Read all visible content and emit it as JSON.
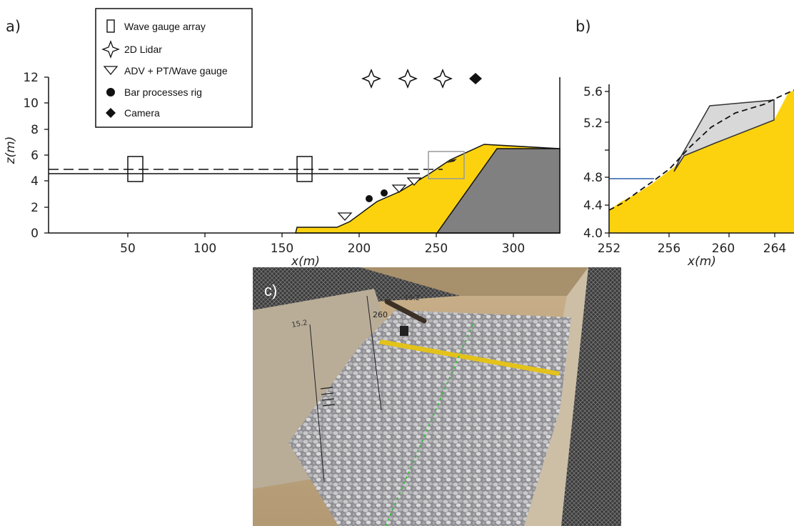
{
  "panel_a": {
    "label": "a)",
    "x_axis_label": "x(m)",
    "y_axis_label": "z(m)",
    "x_ticks": [
      "50",
      "100",
      "150",
      "200",
      "250",
      "300"
    ],
    "y_ticks": [
      "0",
      "2",
      "4",
      "6",
      "8",
      "10",
      "12"
    ],
    "legend": [
      {
        "icon": "rectangle-icon",
        "label": "Wave gauge array"
      },
      {
        "icon": "four-point-star-icon",
        "label": "2D Lidar"
      },
      {
        "icon": "down-triangle-icon",
        "label": "ADV + PT/Wave gauge"
      },
      {
        "icon": "filled-circle-icon",
        "label": "Bar processes rig"
      },
      {
        "icon": "filled-diamond-icon",
        "label": "Camera"
      }
    ]
  },
  "panel_b": {
    "label": "b)",
    "x_axis_label": "x(m)",
    "x_ticks": [
      "252",
      "256",
      "260",
      "264"
    ],
    "y_ticks": [
      "4.0",
      "4.4",
      "4.8",
      "5.2",
      "5.6"
    ]
  },
  "panel_c": {
    "label": "c)",
    "scale_marks": [
      "260",
      "15.2",
      "15.2"
    ]
  },
  "colors": {
    "beach": "#FCD20F",
    "core": "#808080",
    "gravel": "#dcdcdc",
    "swl_line": "#2a5ea8"
  }
}
